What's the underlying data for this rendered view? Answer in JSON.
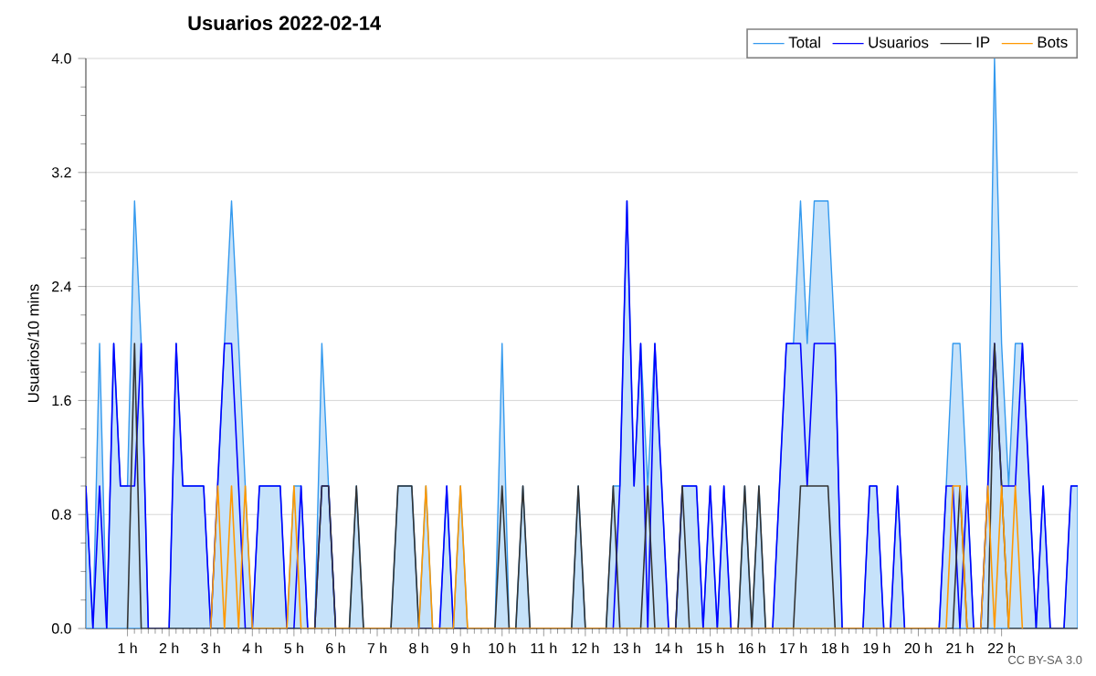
{
  "chart_data": {
    "type": "line",
    "title": "Usuarios  2022-02-14",
    "ylabel": "Usuarios/10 mins",
    "xlim": [
      0,
      23.83
    ],
    "ylim": [
      0,
      4
    ],
    "xticks": [
      {
        "value": 1,
        "label": "1 h"
      },
      {
        "value": 2,
        "label": "2 h"
      },
      {
        "value": 3,
        "label": "3 h"
      },
      {
        "value": 4,
        "label": "4 h"
      },
      {
        "value": 5,
        "label": "5 h"
      },
      {
        "value": 6,
        "label": "6 h"
      },
      {
        "value": 7,
        "label": "7 h"
      },
      {
        "value": 8,
        "label": "8 h"
      },
      {
        "value": 9,
        "label": "9 h"
      },
      {
        "value": 10,
        "label": "10 h"
      },
      {
        "value": 11,
        "label": "11 h"
      },
      {
        "value": 12,
        "label": "12 h"
      },
      {
        "value": 13,
        "label": "13 h"
      },
      {
        "value": 14,
        "label": "14 h"
      },
      {
        "value": 15,
        "label": "15 h"
      },
      {
        "value": 16,
        "label": "16 h"
      },
      {
        "value": 17,
        "label": "17 h"
      },
      {
        "value": 18,
        "label": "18 h"
      },
      {
        "value": 19,
        "label": "19 h"
      },
      {
        "value": 20,
        "label": "20 h"
      },
      {
        "value": 21,
        "label": "21 h"
      },
      {
        "value": 22,
        "label": "22 h"
      }
    ],
    "yticks": [
      {
        "value": 0,
        "label": "0.0"
      },
      {
        "value": 0.8,
        "label": "0.8"
      },
      {
        "value": 1.6,
        "label": "1.6"
      },
      {
        "value": 2.4,
        "label": "2.4"
      },
      {
        "value": 3.2,
        "label": "3.2"
      },
      {
        "value": 4,
        "label": "4.0"
      }
    ],
    "grid": "y",
    "legend": "top right",
    "marker": "none",
    "annotations": [
      "CC BY-SA 3.0"
    ],
    "series": [
      {
        "name": "Total",
        "type": "area",
        "color": "#3399ee",
        "x": [
          0,
          0.17,
          0.33,
          0.5,
          0.67,
          0.83,
          1,
          1.17,
          1.33,
          1.5,
          2,
          2.17,
          2.33,
          2.83,
          3,
          3.17,
          3.33,
          3.5,
          3.67,
          3.83,
          4,
          4.17,
          4.67,
          4.83,
          5,
          5.17,
          5.33,
          5.5,
          5.67,
          5.83,
          6,
          6.33,
          6.5,
          6.67,
          7.33,
          7.5,
          7.83,
          8,
          8.17,
          8.33,
          8.5,
          8.67,
          8.83,
          9,
          9.17,
          9.83,
          10,
          10.17,
          10.33,
          10.5,
          10.67,
          11.67,
          11.83,
          12,
          12.5,
          12.67,
          12.83,
          13,
          13.17,
          13.33,
          13.5,
          13.67,
          14,
          14.17,
          14.33,
          14.67,
          14.83,
          15,
          15.17,
          15.33,
          15.5,
          15.67,
          15.83,
          16,
          16.17,
          16.33,
          16.5,
          16.83,
          17,
          17.17,
          17.33,
          17.5,
          17.83,
          18,
          18.17,
          18.67,
          18.83,
          19,
          19.17,
          19.33,
          19.5,
          19.67,
          20.5,
          20.67,
          20.83,
          21,
          21.17,
          21.33,
          21.5,
          21.67,
          21.83,
          22,
          22.17,
          22.33,
          22.5,
          22.67,
          22.83,
          23,
          23.17,
          23.5,
          23.67,
          23.83
        ],
        "values": [
          1,
          0,
          2,
          0,
          2,
          1,
          1,
          3,
          2,
          0,
          0,
          2,
          1,
          1,
          0,
          1,
          2,
          3,
          2,
          1,
          0,
          1,
          1,
          0,
          1,
          1,
          0,
          0,
          2,
          1,
          0,
          0,
          1,
          0,
          0,
          1,
          1,
          0,
          1,
          0,
          0,
          1,
          0,
          1,
          0,
          0,
          2,
          0,
          0,
          1,
          0,
          0,
          1,
          0,
          0,
          1,
          1,
          3,
          1,
          2,
          1,
          2,
          0,
          0,
          1,
          1,
          0,
          1,
          0,
          1,
          0,
          0,
          1,
          0,
          1,
          0,
          0,
          2,
          2,
          3,
          2,
          3,
          3,
          2,
          0,
          0,
          1,
          1,
          0,
          0,
          1,
          0,
          0,
          1,
          2,
          2,
          1,
          0,
          0,
          1,
          4,
          2,
          1,
          2,
          2,
          1,
          0,
          1,
          0,
          0,
          1,
          1
        ]
      },
      {
        "name": "Usuarios",
        "color": "#0000ff",
        "x": [
          0,
          0.17,
          0.33,
          0.5,
          0.67,
          0.83,
          1.17,
          1.33,
          1.5,
          2,
          2.17,
          2.33,
          2.83,
          3,
          3.33,
          3.5,
          3.67,
          3.83,
          4,
          4.17,
          4.67,
          4.83,
          5,
          5.17,
          5.33,
          5.5,
          5.67,
          5.83,
          6,
          8.5,
          8.67,
          8.83,
          12.67,
          12.83,
          13,
          13.17,
          13.33,
          13.5,
          13.67,
          14,
          14.17,
          14.33,
          14.67,
          14.83,
          15,
          15.17,
          15.33,
          15.5,
          16.5,
          16.83,
          17.17,
          17.33,
          17.5,
          18,
          18.17,
          18.67,
          18.83,
          19,
          19.17,
          19.33,
          19.5,
          19.67,
          20.5,
          20.67,
          20.83,
          21,
          21.17,
          21.33,
          21.5,
          21.67,
          21.83,
          22,
          22.33,
          22.5,
          22.83,
          23,
          23.17,
          23.5,
          23.67,
          23.83
        ],
        "values": [
          1,
          0,
          1,
          0,
          2,
          1,
          1,
          2,
          0,
          0,
          2,
          1,
          1,
          0,
          2,
          2,
          1,
          0,
          0,
          1,
          1,
          0,
          0,
          1,
          0,
          0,
          1,
          1,
          0,
          0,
          1,
          0,
          0,
          1,
          3,
          1,
          2,
          0,
          2,
          0,
          0,
          1,
          1,
          0,
          1,
          0,
          1,
          0,
          0,
          2,
          2,
          1,
          2,
          2,
          0,
          0,
          1,
          1,
          0,
          0,
          1,
          0,
          0,
          1,
          1,
          0,
          1,
          0,
          0,
          1,
          2,
          1,
          1,
          2,
          0,
          1,
          0,
          0,
          1,
          1
        ]
      },
      {
        "name": "IP",
        "color": "#333333",
        "x": [
          1,
          1.17,
          1.33,
          5.5,
          5.67,
          5.83,
          6,
          6.33,
          6.5,
          6.67,
          7.33,
          7.5,
          7.83,
          8,
          9.83,
          10,
          10.17,
          10.33,
          10.5,
          10.67,
          11.67,
          11.83,
          12,
          12.5,
          12.67,
          12.83,
          13.33,
          13.5,
          13.67,
          14.17,
          14.33,
          14.5,
          15.67,
          15.83,
          16,
          16.17,
          16.33,
          17,
          17.17,
          17.83,
          18,
          20.83,
          21,
          21.17,
          21.67,
          21.83,
          22,
          22.17,
          23.83
        ],
        "values": [
          0,
          2,
          0,
          0,
          1,
          1,
          0,
          0,
          1,
          0,
          0,
          1,
          1,
          0,
          0,
          1,
          0,
          0,
          1,
          0,
          0,
          1,
          0,
          0,
          1,
          0,
          0,
          1,
          0,
          0,
          1,
          0,
          0,
          1,
          0,
          1,
          0,
          0,
          1,
          1,
          0,
          0,
          1,
          0,
          0,
          2,
          1,
          0,
          0
        ]
      },
      {
        "name": "Bots",
        "color": "#ff9900",
        "x": [
          3,
          3.17,
          3.33,
          3.5,
          3.67,
          3.83,
          4,
          4.83,
          5,
          5.17,
          8,
          8.17,
          8.33,
          8.83,
          9,
          9.17,
          20.67,
          20.83,
          21,
          21.17,
          21.5,
          21.67,
          21.83,
          22,
          22.17,
          22.33,
          22.5
        ],
        "values": [
          0,
          1,
          0,
          1,
          0,
          1,
          0,
          0,
          1,
          0,
          0,
          1,
          0,
          0,
          1,
          0,
          0,
          1,
          1,
          0,
          0,
          1,
          0,
          1,
          0,
          1,
          0
        ]
      }
    ]
  }
}
